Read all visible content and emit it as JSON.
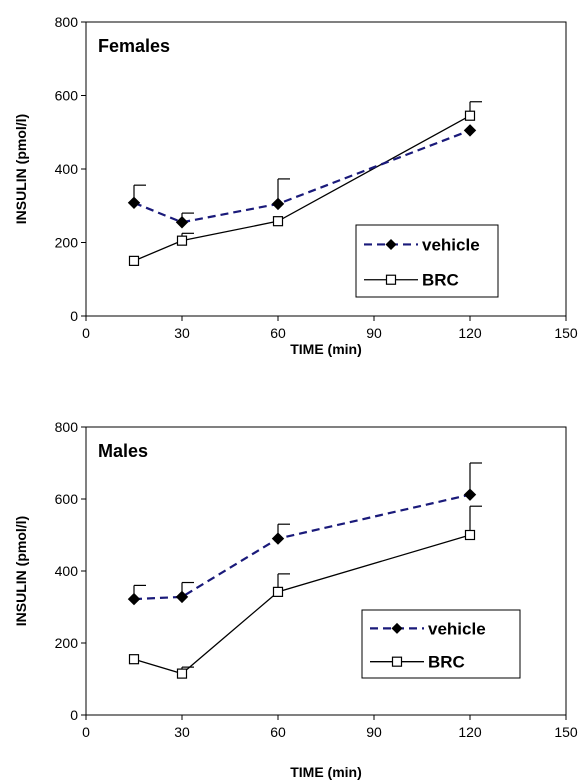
{
  "chart_data": [
    {
      "type": "line",
      "title": "Females",
      "xlabel": "TIME (min)",
      "ylabel": "INSULIN (pmol/l)",
      "xlim": [
        0,
        150
      ],
      "ylim": [
        0,
        800
      ],
      "x_ticks": [
        0,
        30,
        60,
        90,
        120,
        150
      ],
      "y_ticks": [
        0,
        200,
        400,
        600,
        800
      ],
      "grid": false,
      "legend_position": "bottom-right",
      "series": [
        {
          "name": "vehicle",
          "color": "#1a1a7a",
          "line_style": "dashed",
          "marker": "filled-diamond",
          "points": [
            {
              "x": 15,
              "y": 308,
              "err": 48
            },
            {
              "x": 30,
              "y": 255,
              "err": 25
            },
            {
              "x": 60,
              "y": 305,
              "err": 68
            },
            {
              "x": 120,
              "y": 505,
              "err": 0
            }
          ]
        },
        {
          "name": "BRC",
          "color": "#000000",
          "line_style": "solid",
          "marker": "open-square",
          "points": [
            {
              "x": 15,
              "y": 150,
              "err": 0
            },
            {
              "x": 30,
              "y": 205,
              "err": 20
            },
            {
              "x": 60,
              "y": 258,
              "err": 0
            },
            {
              "x": 120,
              "y": 545,
              "err": 38
            }
          ]
        }
      ]
    },
    {
      "type": "line",
      "title": "Males",
      "xlabel": "TIME (min)",
      "ylabel": "INSULIN (pmol/l)",
      "xlim": [
        0,
        150
      ],
      "ylim": [
        0,
        800
      ],
      "x_ticks": [
        0,
        30,
        60,
        90,
        120,
        150
      ],
      "y_ticks": [
        0,
        200,
        400,
        600,
        800
      ],
      "grid": false,
      "legend_position": "bottom-right",
      "series": [
        {
          "name": "vehicle",
          "color": "#1a1a7a",
          "line_style": "dashed",
          "marker": "filled-diamond",
          "points": [
            {
              "x": 15,
              "y": 322,
              "err": 38
            },
            {
              "x": 30,
              "y": 328,
              "err": 40
            },
            {
              "x": 60,
              "y": 490,
              "err": 40
            },
            {
              "x": 120,
              "y": 612,
              "err": 88
            }
          ]
        },
        {
          "name": "BRC",
          "color": "#000000",
          "line_style": "solid",
          "marker": "open-square",
          "points": [
            {
              "x": 15,
              "y": 155,
              "err": 0
            },
            {
              "x": 30,
              "y": 115,
              "err": 18
            },
            {
              "x": 60,
              "y": 342,
              "err": 50
            },
            {
              "x": 120,
              "y": 500,
              "err": 80
            }
          ]
        }
      ]
    }
  ]
}
